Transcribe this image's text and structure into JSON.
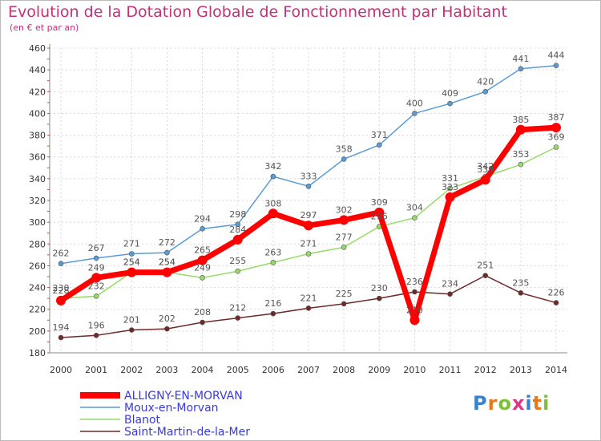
{
  "chart_data": {
    "type": "line",
    "title": "Evolution de la Dotation Globale de Fonctionnement par Habitant",
    "subtitle": "(en € et par an)",
    "x": [
      "2000",
      "2001",
      "2002",
      "2003",
      "2004",
      "2005",
      "2006",
      "2007",
      "2008",
      "2009",
      "2010",
      "2011",
      "2012",
      "2013",
      "2014"
    ],
    "ylim": [
      180,
      460
    ],
    "yticks": [
      180,
      200,
      220,
      240,
      260,
      280,
      300,
      320,
      340,
      360,
      380,
      400,
      420,
      440,
      460
    ],
    "series": [
      {
        "name": "Moux-en-Morvan",
        "color": "#5b9bd5",
        "values": [
          262,
          267,
          271,
          272,
          294,
          298,
          342,
          333,
          358,
          371,
          400,
          409,
          420,
          441,
          444
        ]
      },
      {
        "name": "Blanot",
        "color": "#99d96a",
        "values": [
          230,
          232,
          254,
          254,
          249,
          255,
          263,
          271,
          277,
          296,
          304,
          331,
          342,
          353,
          369
        ]
      },
      {
        "name": "Saint-Martin-de-la-Mer",
        "color": "#6e2a2a",
        "values": [
          194,
          196,
          201,
          202,
          208,
          212,
          216,
          221,
          225,
          230,
          236,
          234,
          251,
          235,
          226
        ]
      },
      {
        "name": "ALLIGNY-EN-MORVAN",
        "color": "#ff0000",
        "values": [
          228,
          249,
          254,
          254,
          265,
          284,
          308,
          297,
          302,
          309,
          210,
          323,
          339,
          385,
          387
        ]
      }
    ],
    "legend": [
      "ALLIGNY-EN-MORVAN",
      "Moux-en-Morvan",
      "Blanot",
      "Saint-Martin-de-la-Mer"
    ],
    "legend_position": "bottom-left"
  },
  "logo": {
    "text": "Proxiti",
    "letters": [
      "P",
      "r",
      "o",
      "x",
      "i",
      "t",
      "i"
    ],
    "colors": [
      "#3a7fd0",
      "#e57a1d",
      "#7bbf3a",
      "#d9388a",
      "#3a7fd0",
      "#e57a1d",
      "#7bbf3a"
    ]
  }
}
